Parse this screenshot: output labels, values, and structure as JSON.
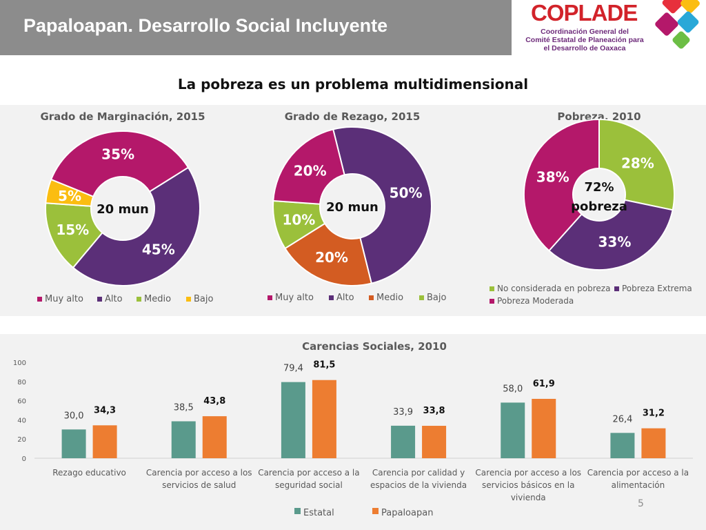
{
  "header": {
    "title": "Papaloapan. Desarrollo Social Incluyente",
    "logo_name": "COPLADE",
    "logo_lines": [
      "Coordinación General del",
      "Comité Estatal de Planeación para",
      "el Desarrollo de Oaxaca"
    ]
  },
  "subtitle": "La pobreza es un problema multidimensional",
  "page_number": "5",
  "chart_data": [
    {
      "type": "pie",
      "title": "Grado de Marginación, 2015",
      "center_label": "20 mun",
      "slices": [
        {
          "name": "Alto",
          "value": 45,
          "label": "45%",
          "color": "#5b2f78"
        },
        {
          "name": "Medio",
          "value": 15,
          "label": "15%",
          "color": "#9bc03b"
        },
        {
          "name": "Bajo",
          "value": 5,
          "label": "5%",
          "color": "#fbbd11"
        },
        {
          "name": "Muy alto",
          "value": 35,
          "label": "35%",
          "color": "#b4186a"
        }
      ],
      "legend": [
        {
          "name": "Muy alto",
          "color": "#b4186a"
        },
        {
          "name": "Alto",
          "color": "#5b2f78"
        },
        {
          "name": "Medio",
          "color": "#9bc03b"
        },
        {
          "name": "Bajo",
          "color": "#fbbd11"
        }
      ]
    },
    {
      "type": "pie",
      "title": "Grado de Rezago, 2015",
      "center_label": "20 mun",
      "slices": [
        {
          "name": "Alto",
          "value": 50,
          "label": "50%",
          "color": "#5b2f78"
        },
        {
          "name": "Medio",
          "value": 20,
          "label": "20%",
          "color": "#d35c22"
        },
        {
          "name": "Bajo",
          "value": 10,
          "label": "10%",
          "color": "#9bc03b"
        },
        {
          "name": "Muy alto",
          "value": 20,
          "label": "20%",
          "color": "#b4186a"
        }
      ],
      "legend": [
        {
          "name": "Muy alto",
          "color": "#b4186a"
        },
        {
          "name": "Alto",
          "color": "#5b2f78"
        },
        {
          "name": "Medio",
          "color": "#d35c22"
        },
        {
          "name": "Bajo",
          "color": "#9bc03b"
        }
      ]
    },
    {
      "type": "pie",
      "title": "Pobreza, 2010",
      "center_label_lines": [
        "72%",
        "pobreza"
      ],
      "slices": [
        {
          "name": "No considerada en pobreza",
          "value": 28,
          "label": "28%",
          "color": "#9bc03b"
        },
        {
          "name": "Pobreza Extrema",
          "value": 33,
          "label": "33%",
          "color": "#5b2f78"
        },
        {
          "name": "Pobreza Moderada",
          "value": 38,
          "label": "38%",
          "color": "#b4186a"
        }
      ],
      "legend": [
        {
          "name": "No considerada en pobreza",
          "color": "#9bc03b"
        },
        {
          "name": "Pobreza Extrema",
          "color": "#5b2f78"
        },
        {
          "name": "Pobreza Moderada",
          "color": "#b4186a"
        }
      ]
    },
    {
      "type": "bar",
      "title": "Carencias Sociales, 2010",
      "categories": [
        [
          "Rezago educativo"
        ],
        [
          "Carencia por acceso a los",
          "servicios de salud"
        ],
        [
          "Carencia por acceso a la",
          "seguridad social"
        ],
        [
          "Carencia por calidad y",
          "espacios de la vivienda"
        ],
        [
          "Carencia por acceso a los",
          "servicios básicos en la",
          "vivienda"
        ],
        [
          "Carencia por acceso a la",
          "alimentación"
        ]
      ],
      "series": [
        {
          "name": "Estatal",
          "color": "#5a9a8c",
          "values": [
            30.0,
            38.5,
            79.4,
            33.9,
            58.0,
            26.4
          ],
          "labels": [
            "30,0",
            "38,5",
            "79,4",
            "33,9",
            "58,0",
            "26,4"
          ]
        },
        {
          "name": "Papaloapan",
          "color": "#ed7d31",
          "values": [
            34.3,
            43.8,
            81.5,
            33.8,
            61.9,
            31.2
          ],
          "labels": [
            "34,3",
            "43,8",
            "81,5",
            "33,8",
            "61,9",
            "31,2"
          ]
        }
      ],
      "y_ticks": [
        "0",
        "20",
        "40",
        "60",
        "80",
        "100"
      ],
      "ylim": [
        0,
        100
      ],
      "grid": false,
      "legend_position": "bottom"
    }
  ]
}
